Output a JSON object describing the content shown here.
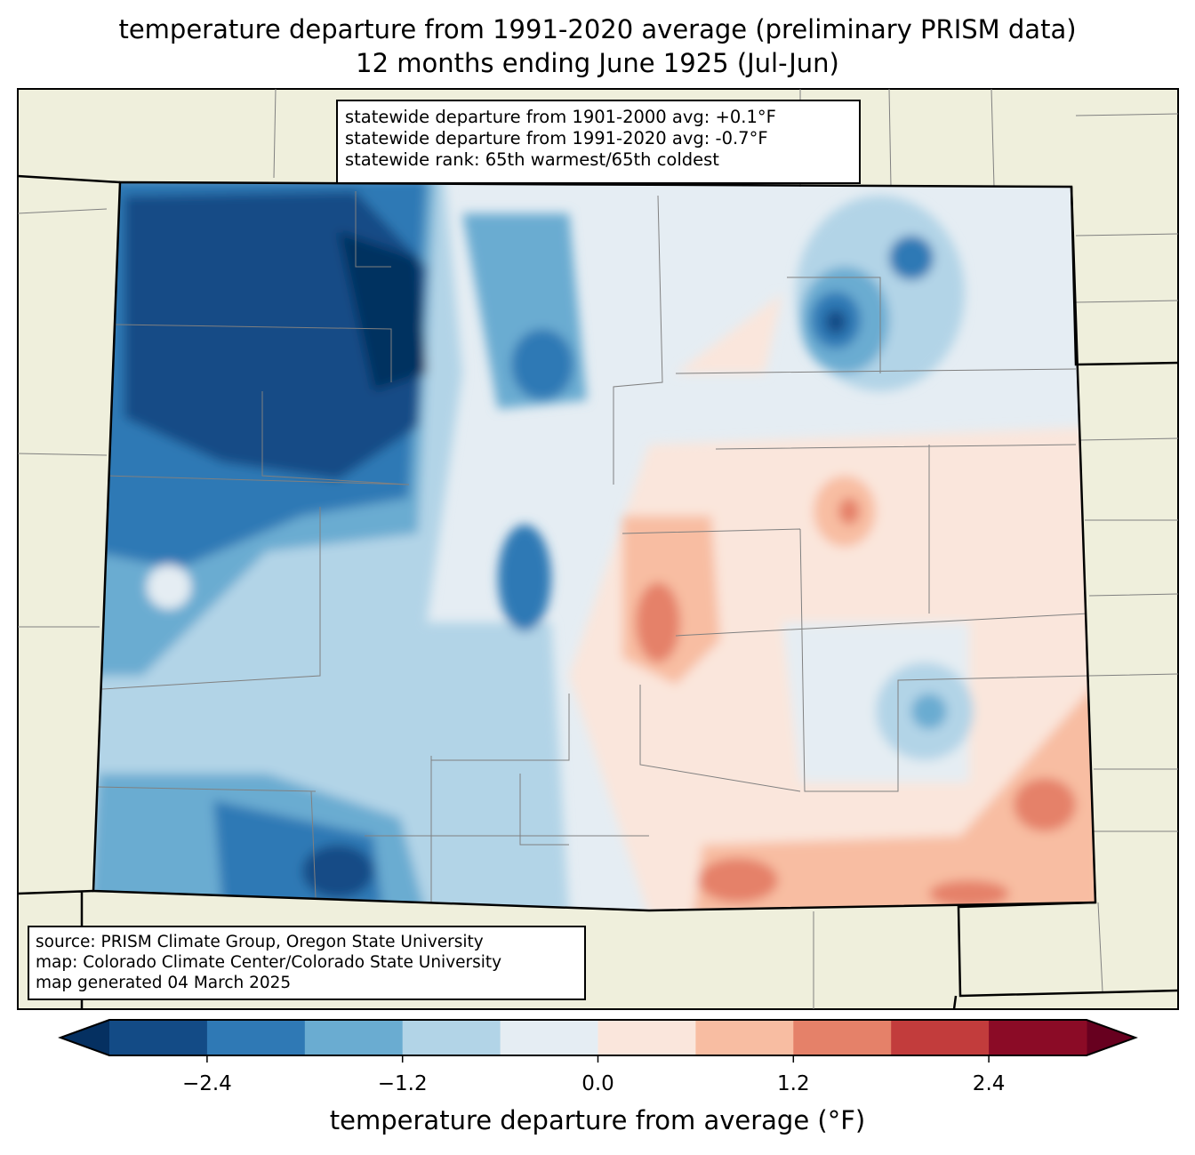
{
  "title": {
    "line1": "temperature departure from 1991-2020 average (preliminary PRISM data)",
    "line2": "12 months ending June 1925 (Jul-Jun)"
  },
  "stats": [
    "statewide departure from 1901-2000 avg: +0.1°F",
    "statewide departure from 1991-2020 avg: -0.7°F",
    "statewide rank: 65th warmest/65th coldest"
  ],
  "credits": [
    "source: PRISM Climate Group, Oregon State University",
    "map: Colorado Climate Center/Colorado State University",
    "map generated 04 March 2025"
  ],
  "colorbar": {
    "label": "temperature departure from average (°F)",
    "bounds": [
      -3.0,
      -2.4,
      -1.8,
      -1.2,
      -0.6,
      0.0,
      0.6,
      1.2,
      1.8,
      2.4,
      3.0
    ],
    "colors": [
      "#134b86",
      "#2f79b5",
      "#6aacd1",
      "#b2d4e7",
      "#e5edf3",
      "#fae6dc",
      "#f8bda2",
      "#e58169",
      "#c23c3c",
      "#8b0b26"
    ],
    "extend_low": "#053061",
    "extend_high": "#67001f",
    "ticks": [
      "−2.4",
      "−1.2",
      "0.0",
      "1.2",
      "2.4"
    ]
  },
  "colors": {
    "land": "#efefdc",
    "county": "#808080"
  }
}
